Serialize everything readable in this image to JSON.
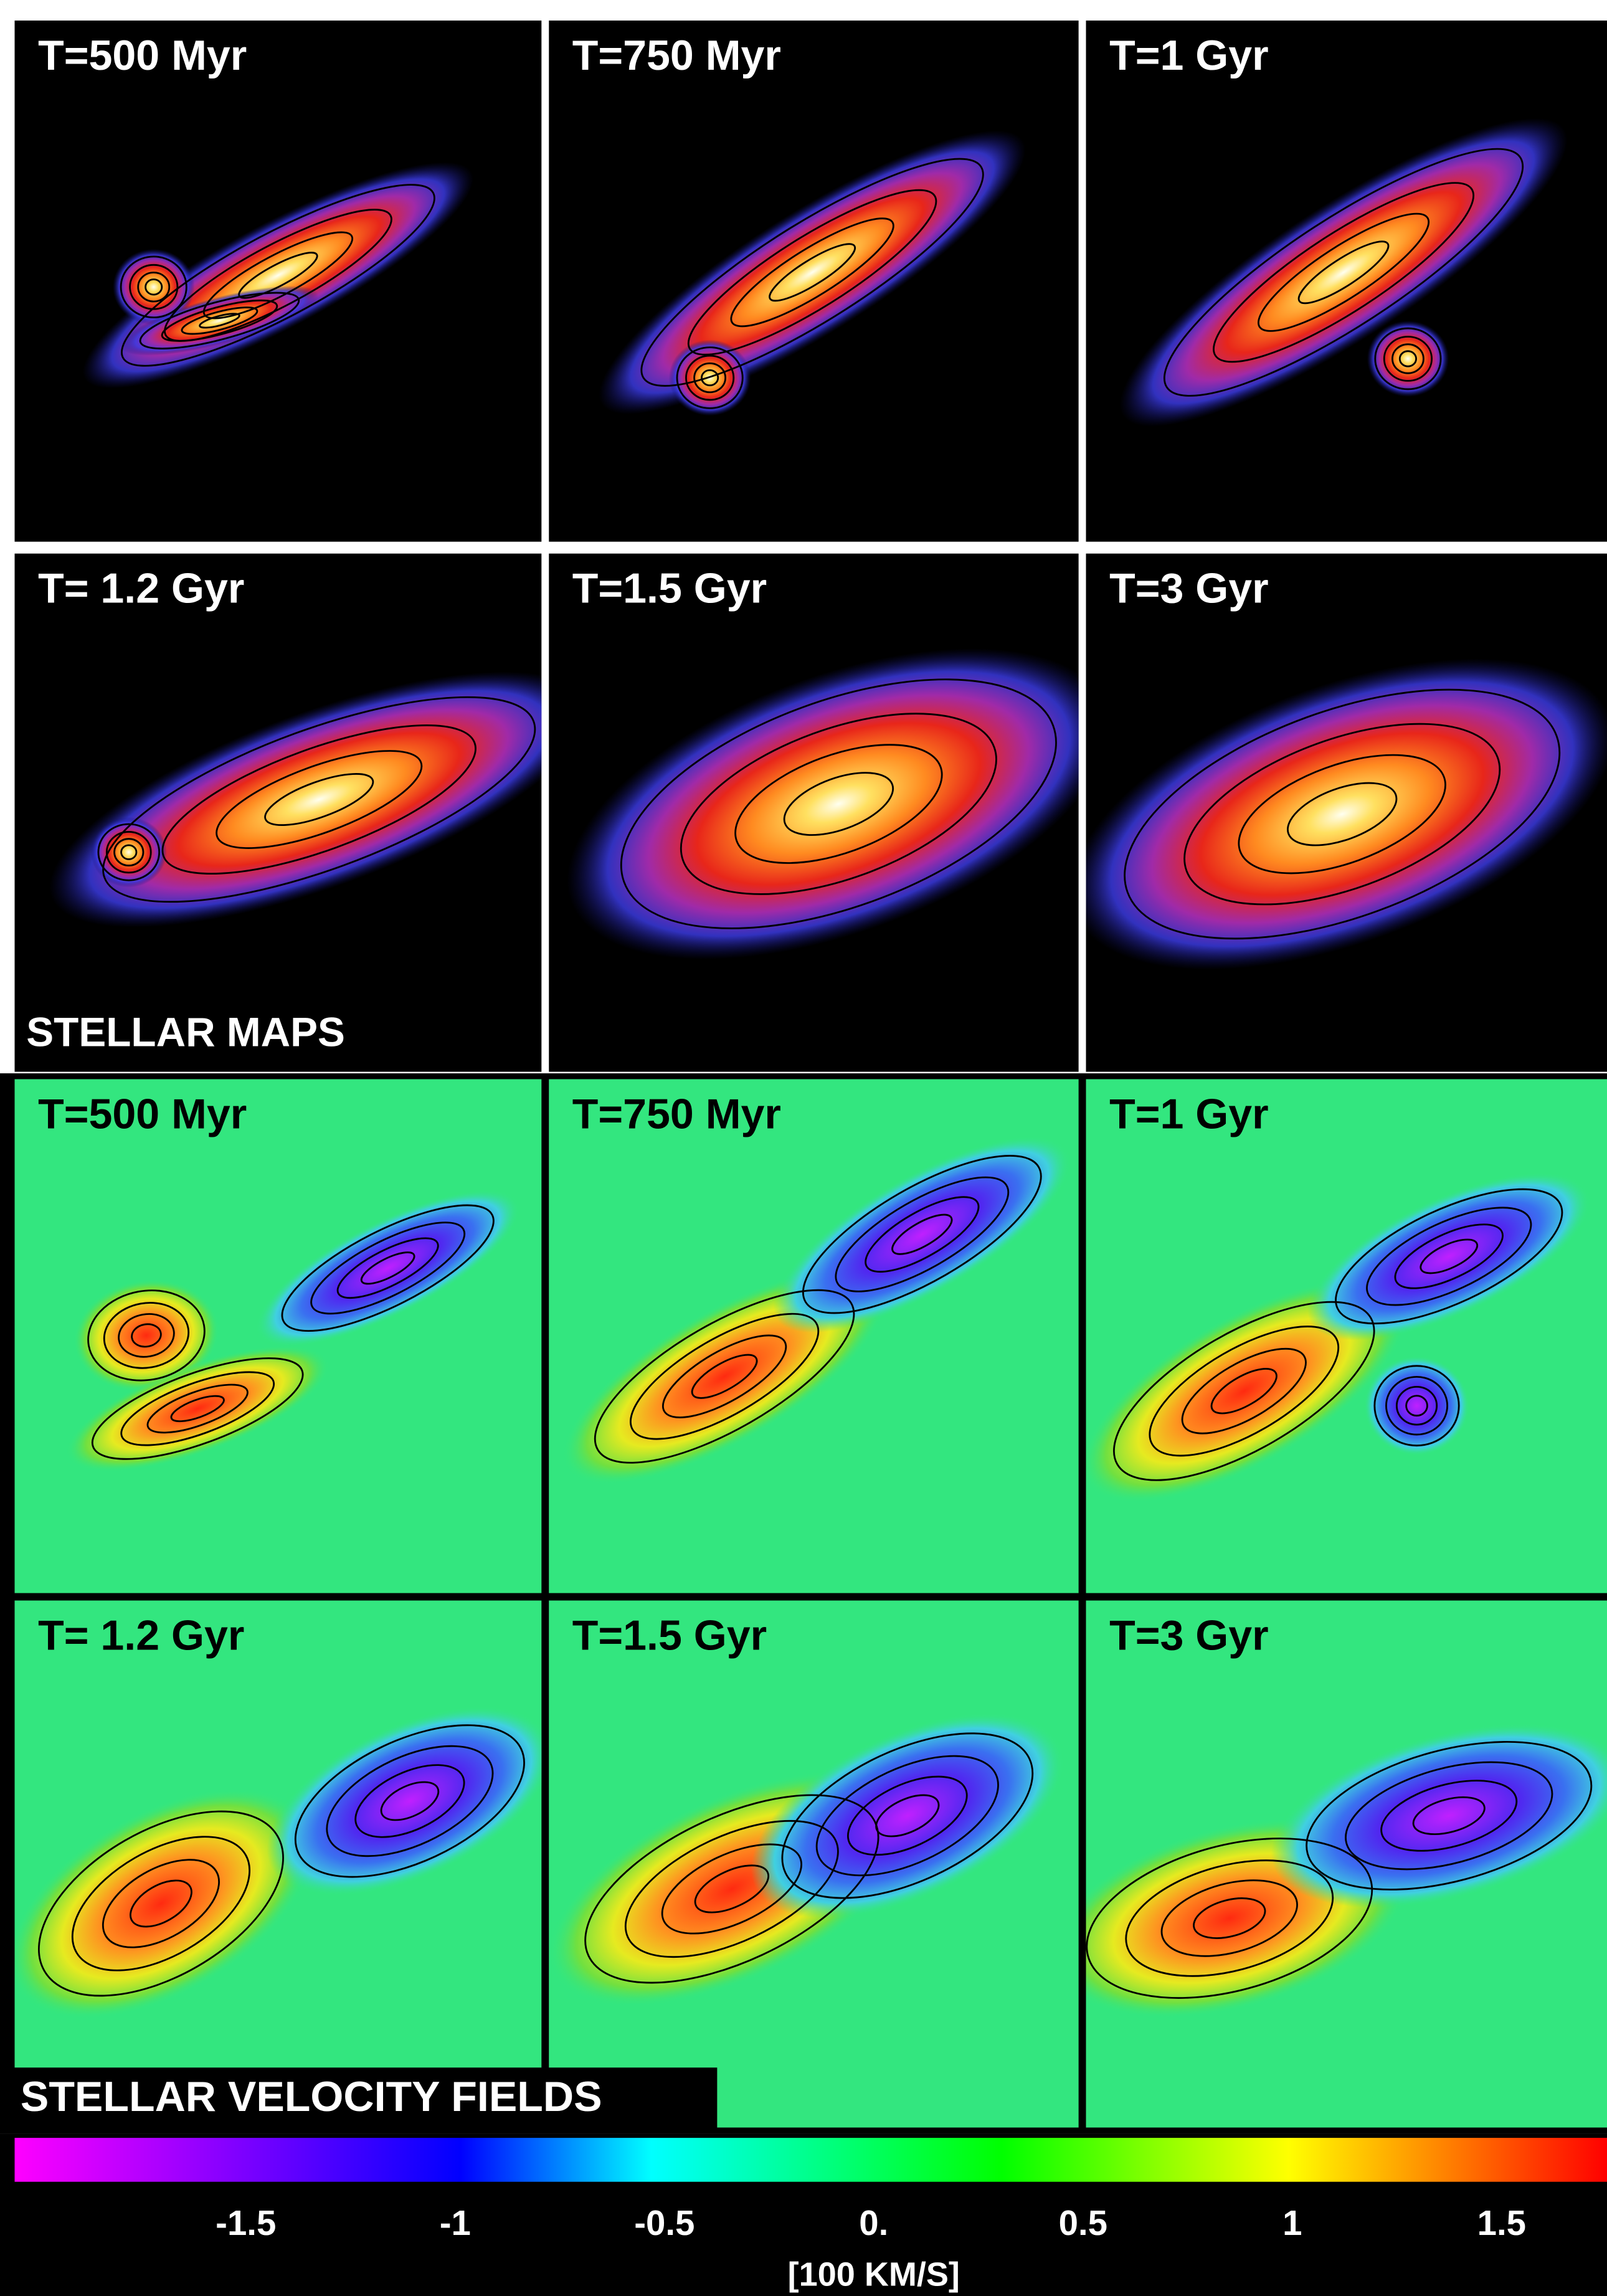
{
  "stellar_maps": {
    "label": "STELLAR MAPS",
    "panels": [
      {
        "time": "T=500 Myr"
      },
      {
        "time": "T=750 Myr"
      },
      {
        "time": "T=1 Gyr"
      },
      {
        "time": "T= 1.2 Gyr"
      },
      {
        "time": "T=1.5 Gyr"
      },
      {
        "time": "T=3 Gyr"
      }
    ]
  },
  "velocity_fields": {
    "label": "STELLAR VELOCITY FIELDS",
    "panels": [
      {
        "time": "T=500 Myr"
      },
      {
        "time": "T=750 Myr"
      },
      {
        "time": "T=1 Gyr"
      },
      {
        "time": "T= 1.2 Gyr"
      },
      {
        "time": "T=1.5 Gyr"
      },
      {
        "time": "T=3 Gyr"
      }
    ]
  },
  "colorbar": {
    "ticks": [
      -1.5,
      -1,
      -0.5,
      {
        "value": 0,
        "label": "0."
      },
      0.5,
      1,
      1.5
    ],
    "unit": "[100 KM/S]"
  }
}
